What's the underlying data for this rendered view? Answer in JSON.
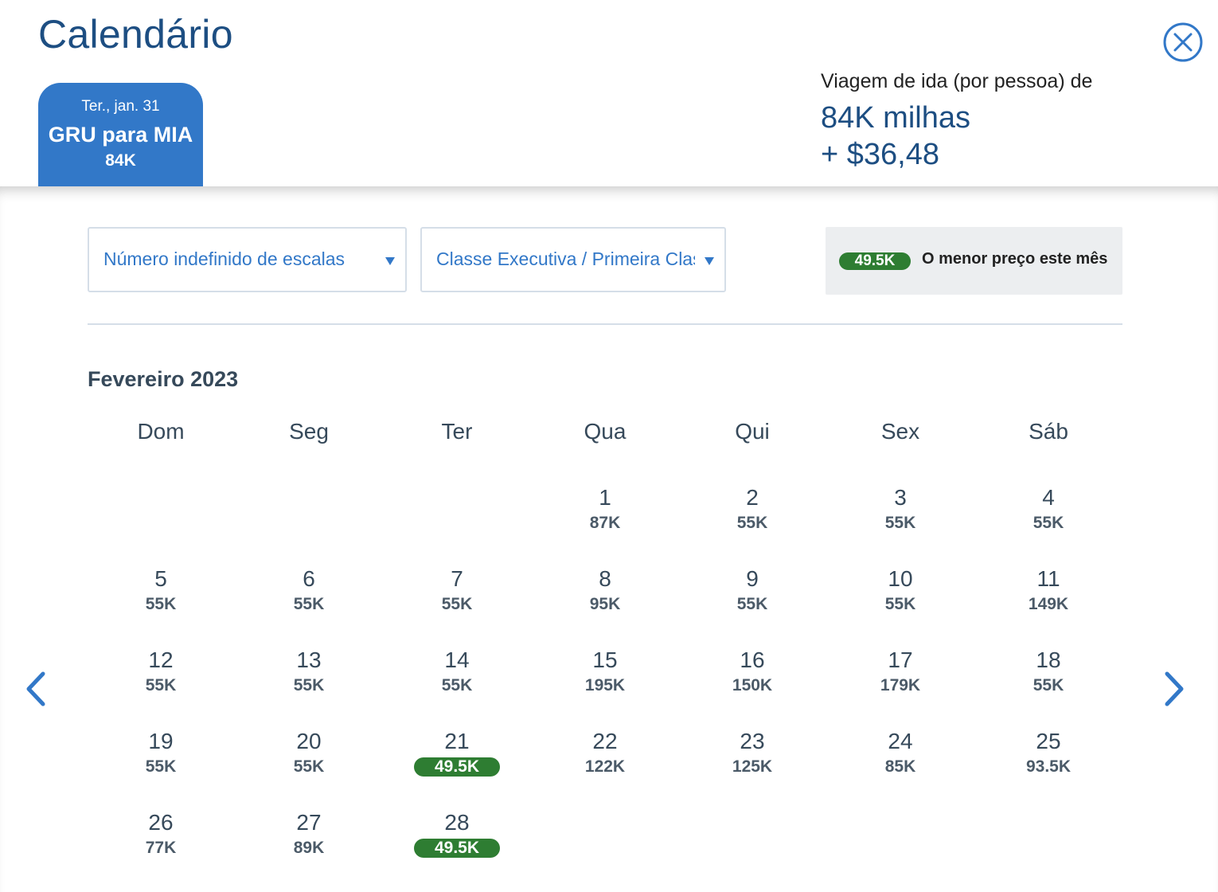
{
  "header": {
    "title": "Calendário",
    "close_icon": "close-icon",
    "flight_tab": {
      "date": "Ter., jan. 31",
      "route": "GRU para MIA",
      "price": "84K"
    },
    "trip": {
      "label": "Viagem de ida (por pessoa) de",
      "miles": "84K milhas",
      "cash": "+ $36,48"
    }
  },
  "filters": {
    "stops": "Número indefinido de escalas",
    "cabin": "Classe Executiva / Primeira Classe"
  },
  "legend": {
    "price": "49.5K",
    "text": "O menor preço este mês"
  },
  "calendar": {
    "month": "Fevereiro 2023",
    "weekdays": [
      "Dom",
      "Seg",
      "Ter",
      "Qua",
      "Qui",
      "Sex",
      "Sáb"
    ],
    "days": [
      {
        "day": "1",
        "price": "87K",
        "lowest": false
      },
      {
        "day": "2",
        "price": "55K",
        "lowest": false
      },
      {
        "day": "3",
        "price": "55K",
        "lowest": false
      },
      {
        "day": "4",
        "price": "55K",
        "lowest": false
      },
      {
        "day": "5",
        "price": "55K",
        "lowest": false
      },
      {
        "day": "6",
        "price": "55K",
        "lowest": false
      },
      {
        "day": "7",
        "price": "55K",
        "lowest": false
      },
      {
        "day": "8",
        "price": "95K",
        "lowest": false
      },
      {
        "day": "9",
        "price": "55K",
        "lowest": false
      },
      {
        "day": "10",
        "price": "55K",
        "lowest": false
      },
      {
        "day": "11",
        "price": "149K",
        "lowest": false
      },
      {
        "day": "12",
        "price": "55K",
        "lowest": false
      },
      {
        "day": "13",
        "price": "55K",
        "lowest": false
      },
      {
        "day": "14",
        "price": "55K",
        "lowest": false
      },
      {
        "day": "15",
        "price": "195K",
        "lowest": false
      },
      {
        "day": "16",
        "price": "150K",
        "lowest": false
      },
      {
        "day": "17",
        "price": "179K",
        "lowest": false
      },
      {
        "day": "18",
        "price": "55K",
        "lowest": false
      },
      {
        "day": "19",
        "price": "55K",
        "lowest": false
      },
      {
        "day": "20",
        "price": "55K",
        "lowest": false
      },
      {
        "day": "21",
        "price": "49.5K",
        "lowest": true
      },
      {
        "day": "22",
        "price": "122K",
        "lowest": false
      },
      {
        "day": "23",
        "price": "125K",
        "lowest": false
      },
      {
        "day": "24",
        "price": "85K",
        "lowest": false
      },
      {
        "day": "25",
        "price": "93.5K",
        "lowest": false
      },
      {
        "day": "26",
        "price": "77K",
        "lowest": false
      },
      {
        "day": "27",
        "price": "89K",
        "lowest": false
      },
      {
        "day": "28",
        "price": "49.5K",
        "lowest": true
      }
    ]
  },
  "navigation": {
    "prev_icon": "chevron-left-icon",
    "next_icon": "chevron-right-icon"
  },
  "colors": {
    "brand_blue": "#3278c8",
    "title_blue": "#1d4e82",
    "lowest_green": "#2e7d32"
  }
}
